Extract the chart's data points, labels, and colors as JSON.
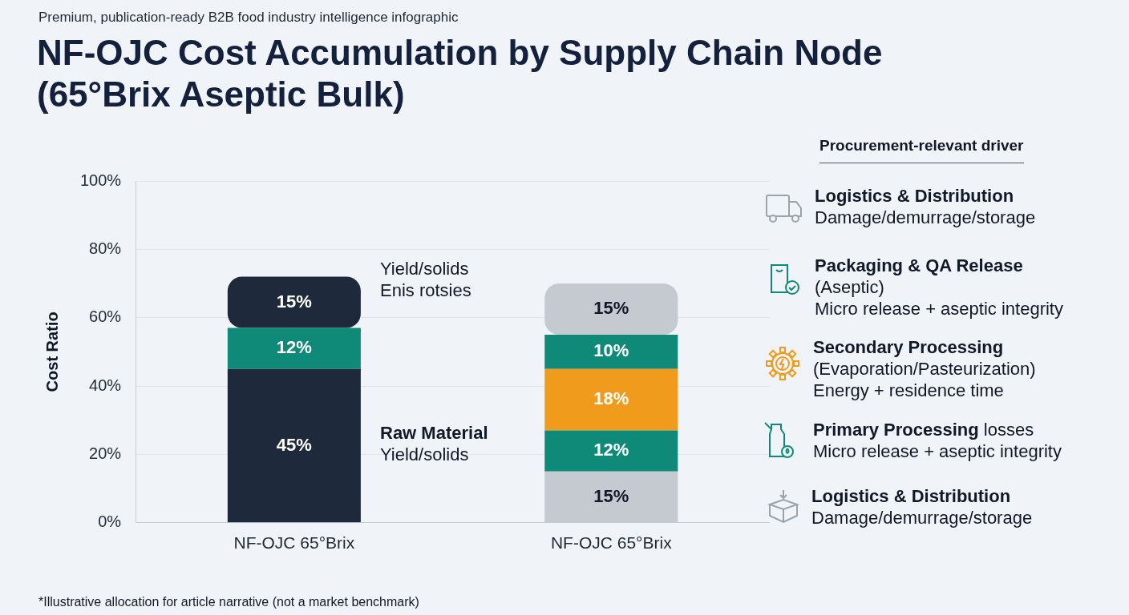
{
  "chart_data": {
    "type": "bar",
    "stacked": true,
    "subtitle": "Premium, publication-ready B2B food industry intelligence infographic",
    "title": "NF-OJC Cost Accumulation by Supply Chain Node\n(65°Brix Aseptic Bulk)",
    "ylabel": "Cost Ratio",
    "categories": [
      "NF-OJC 65°Brix",
      "NF-OJC 65°Brix"
    ],
    "series": [
      {
        "values": [
          45,
          15
        ],
        "colors": [
          "#1e293b",
          "#c5cad1"
        ],
        "value_labels": [
          "45%",
          "15%"
        ]
      },
      {
        "values": [
          12,
          12
        ],
        "colors": [
          "#0f8a78",
          "#0f8a78"
        ],
        "value_labels": [
          "12%",
          "12%"
        ]
      },
      {
        "values": [
          15,
          18
        ],
        "colors": [
          "#1e293b",
          "#f09b1b"
        ],
        "value_labels": [
          "15%",
          "18%"
        ]
      },
      {
        "values": [
          null,
          10
        ],
        "colors": [
          "#0f8a78",
          "#0f8a78"
        ],
        "value_labels": [
          null,
          "10%"
        ]
      },
      {
        "values": [
          null,
          15
        ],
        "colors": [
          "#c5cad1",
          "#c5cad1"
        ],
        "value_labels": [
          null,
          "15%"
        ]
      }
    ],
    "ylim": [
      0,
      100
    ],
    "yticks": [
      {
        "value": 0,
        "label": "0%"
      },
      {
        "value": 20,
        "label": "20%"
      },
      {
        "value": 40,
        "label": "40%"
      },
      {
        "value": 60,
        "label": "60%"
      },
      {
        "value": 80,
        "label": "80%"
      },
      {
        "value": 100,
        "label": "100%"
      }
    ],
    "grid": "y",
    "legend": false,
    "annotations": [
      "Procurement-relevant driver",
      "Yield/solids\nEnis rotsies",
      "Raw Material\nYield/solids",
      "Logistics & Distribution\nDamage/demurrage/storage",
      "Packaging & QA Release\n(Aseptic)\nMicro release + aseptic integrity",
      "Secondary Processing\n(Evaporation/Pasteurization)\nEnergy + residence time",
      "Primary Processing losses\nMicro release + aseptic integrity",
      "Logistics & Distribution\nDamage/demurrage/storage",
      "*Illustrative allocation for article narrative (not a market benchmark)"
    ]
  }
}
